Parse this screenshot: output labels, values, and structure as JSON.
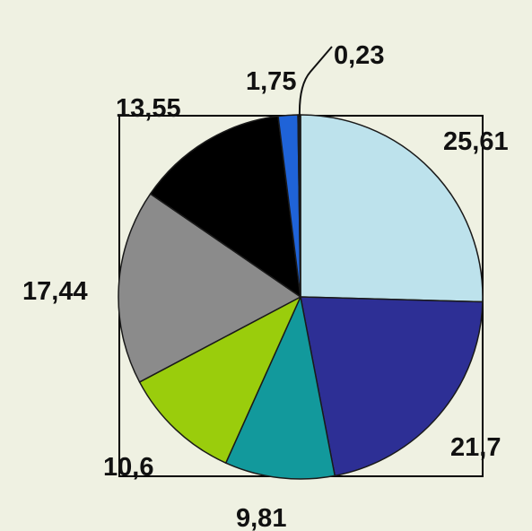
{
  "colors": {
    "background": "#eff1e2",
    "frame": "#000000",
    "slice_outline": "#1a1a1a"
  },
  "chart_data": {
    "type": "pie",
    "title": "",
    "start_angle_deg": 90,
    "direction": "clockwise",
    "slices": [
      {
        "value": 25.61,
        "label": "25,61",
        "color": "#bde2ec"
      },
      {
        "value": 21.7,
        "label": "21,7",
        "color": "#2d2f95"
      },
      {
        "value": 9.81,
        "label": "9,81",
        "color": "#12999c"
      },
      {
        "value": 10.6,
        "label": "10,6",
        "color": "#9acd0c"
      },
      {
        "value": 17.44,
        "label": "17,44",
        "color": "#8b8b8b"
      },
      {
        "value": 13.55,
        "label": "13,55",
        "color": "#000000"
      },
      {
        "value": 1.75,
        "label": "1,75",
        "color": "#1f63d8"
      },
      {
        "value": 0.23,
        "label": "0,23",
        "color": "#1a1a1a"
      }
    ],
    "legend": "none"
  }
}
